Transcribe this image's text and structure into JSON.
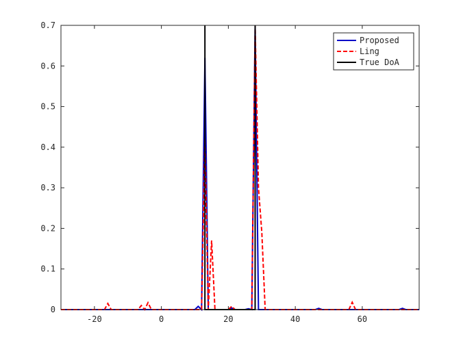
{
  "chart_data": {
    "type": "line",
    "title": "",
    "xlabel": "",
    "ylabel": "",
    "xlim": [
      -30,
      77
    ],
    "ylim": [
      0,
      0.7
    ],
    "x_ticks": [
      -20,
      0,
      20,
      40,
      60
    ],
    "y_ticks": [
      0,
      0.1,
      0.2,
      0.3,
      0.4,
      0.5,
      0.6,
      0.7
    ],
    "x_tick_labels": [
      "-20",
      "0",
      "20",
      "40",
      "60"
    ],
    "y_tick_labels": [
      "0",
      "0.1",
      "0.2",
      "0.3",
      "0.4",
      "0.5",
      "0.6",
      "0.7"
    ],
    "grid": false,
    "legend_position": "top-right",
    "series": [
      {
        "name": "Proposed",
        "color": "#0000c8",
        "style": "solid",
        "points": [
          [
            -30,
            0
          ],
          [
            10,
            0
          ],
          [
            11,
            0.008
          ],
          [
            12,
            0
          ],
          [
            13,
            0.62
          ],
          [
            14,
            0
          ],
          [
            20,
            0
          ],
          [
            21,
            0.004
          ],
          [
            22,
            0
          ],
          [
            25,
            0
          ],
          [
            26,
            0.002
          ],
          [
            27,
            0
          ],
          [
            28,
            0.7
          ],
          [
            29,
            0
          ],
          [
            46,
            0
          ],
          [
            47,
            0.003
          ],
          [
            48,
            0
          ],
          [
            71,
            0
          ],
          [
            72,
            0.003
          ],
          [
            73,
            0
          ],
          [
            77,
            0
          ]
        ]
      },
      {
        "name": "Ling",
        "color": "#ff0000",
        "style": "dashed",
        "points": [
          [
            -30,
            0
          ],
          [
            -17,
            0
          ],
          [
            -16,
            0.015
          ],
          [
            -15,
            0
          ],
          [
            -7,
            0
          ],
          [
            -6,
            0.01
          ],
          [
            -5,
            0
          ],
          [
            -4,
            0.017
          ],
          [
            -3,
            0
          ],
          [
            12,
            0
          ],
          [
            13,
            0.42
          ],
          [
            14,
            0
          ],
          [
            15,
            0.17
          ],
          [
            16,
            0
          ],
          [
            20,
            0
          ],
          [
            21,
            0.008
          ],
          [
            22,
            0
          ],
          [
            27,
            0
          ],
          [
            28,
            0.7
          ],
          [
            29,
            0.3
          ],
          [
            30,
            0.19
          ],
          [
            31,
            0
          ],
          [
            56,
            0
          ],
          [
            57,
            0.018
          ],
          [
            58,
            0
          ],
          [
            77,
            0
          ]
        ]
      },
      {
        "name": "True DoA",
        "color": "#000000",
        "style": "solid",
        "points": [
          [
            13,
            0
          ],
          [
            13,
            0.7
          ],
          [
            13,
            0
          ],
          [
            28,
            0
          ],
          [
            28,
            0.7
          ],
          [
            28,
            0
          ]
        ]
      }
    ]
  }
}
